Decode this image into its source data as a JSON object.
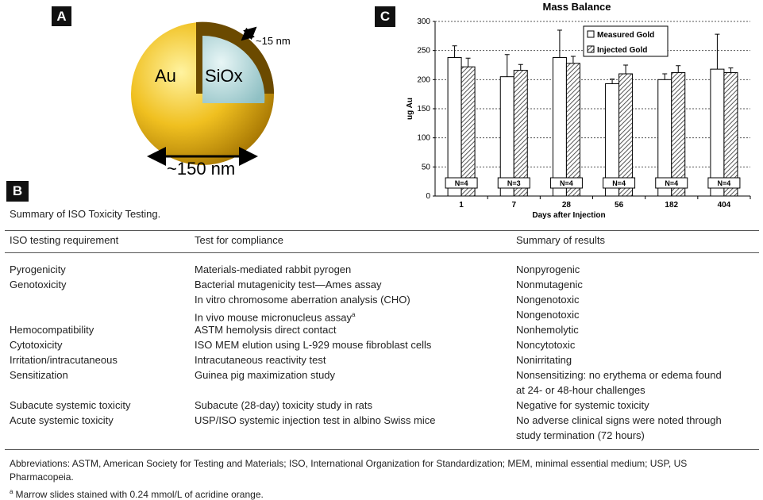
{
  "panel_labels": [
    "A",
    "B",
    "C"
  ],
  "diagram": {
    "outer": "Au",
    "inner": "SiOx",
    "shell": "~15 nm",
    "diameter": "~150 nm"
  },
  "table": {
    "caption": "Summary of ISO Toxicity Testing.",
    "headers": [
      "ISO testing requirement",
      "Test for compliance",
      "Summary of results"
    ],
    "groups": [
      {
        "requirement": "Pyrogenicity",
        "tests": [
          {
            "test": "Materials-mediated rabbit pyrogen",
            "result": [
              "Nonpyrogenic"
            ]
          }
        ]
      },
      {
        "requirement": "Genotoxicity",
        "tests": [
          {
            "test": "Bacterial mutagenicity test—Ames assay",
            "result": [
              "Nonmutagenic"
            ]
          },
          {
            "test": "In vitro chromosome aberration analysis (CHO)",
            "result": [
              "Nongenotoxic"
            ]
          },
          {
            "test": "In vivo mouse micronucleus assay",
            "note": "a",
            "result": [
              "Nongenotoxic"
            ]
          }
        ]
      },
      {
        "requirement": "Hemocompatibility",
        "tests": [
          {
            "test": "ASTM hemolysis direct contact",
            "result": [
              "Nonhemolytic"
            ]
          }
        ]
      },
      {
        "requirement": "Cytotoxicity",
        "tests": [
          {
            "test": "ISO MEM elution using L-929 mouse fibroblast cells",
            "result": [
              "Noncytotoxic"
            ]
          }
        ]
      },
      {
        "requirement": "Irritation/intracutaneous",
        "tests": [
          {
            "test": "Intracutaneous reactivity test",
            "result": [
              "Nonirritating"
            ]
          }
        ]
      },
      {
        "requirement": "Sensitization",
        "tests": [
          {
            "test": "Guinea pig maximization study",
            "result": [
              "Nonsensitizing: no erythema or edema found",
              "at 24- or 48-hour challenges"
            ]
          }
        ]
      },
      {
        "requirement": "Subacute systemic toxicity",
        "tests": [
          {
            "test": "Subacute (28-day) toxicity study in rats",
            "result": [
              "Negative for systemic toxicity"
            ]
          }
        ]
      },
      {
        "requirement": "Acute systemic toxicity",
        "tests": [
          {
            "test": "USP/ISO systemic injection test in albino Swiss mice",
            "result": [
              "No adverse clinical signs were noted through",
              "study termination (72 hours)"
            ]
          }
        ]
      }
    ],
    "footnotes": {
      "abbreviations": [
        "Abbreviations: ASTM, American Society for Testing and Materials; ISO, International Organization for Standardization; MEM, minimal essential medium; USP, US",
        "Pharmacopeia."
      ],
      "note_mark": "a",
      "note": "Marrow slides stained with 0.24 mmol/L of acridine orange."
    }
  },
  "chart_data": {
    "type": "bar",
    "title": "Mass Balance",
    "x_label": "Days after Injection",
    "y_label": "ug Au",
    "categories": [
      "1",
      "7",
      "28",
      "56",
      "182",
      "404"
    ],
    "series": [
      {
        "name": "Measured Gold",
        "color": "#ffffff",
        "values": [
          238,
          205,
          238,
          193,
          200,
          218
        ],
        "errors": [
          20,
          38,
          47,
          8,
          10,
          60
        ]
      },
      {
        "name": "Injected Gold",
        "color": "hatch",
        "values": [
          222,
          216,
          228,
          210,
          212,
          212
        ],
        "errors": [
          15,
          10,
          12,
          15,
          12,
          8
        ]
      }
    ],
    "annotations": [
      "N=4",
      "N=3",
      "N=4",
      "N=4",
      "N=4",
      "N=4"
    ],
    "ylim": [
      0,
      300
    ],
    "yticks": [
      0,
      50,
      100,
      150,
      200,
      250,
      300
    ],
    "grid": true,
    "legend": "top-right"
  }
}
